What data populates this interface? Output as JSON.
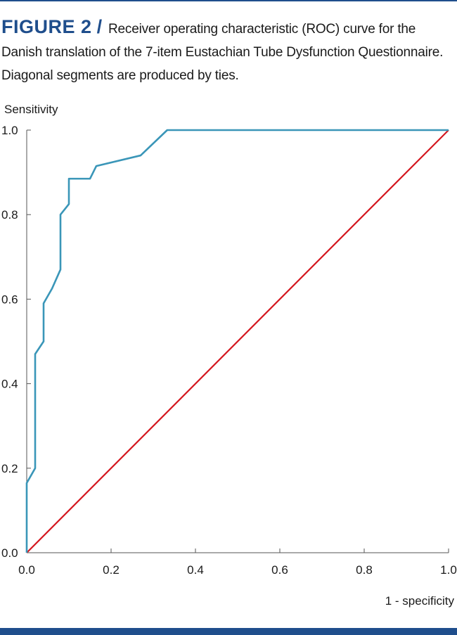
{
  "figure": {
    "label": "FIGURE 2",
    "separator": "/",
    "caption": "Receiver operating characteristic (ROC) curve for the Danish translation of the 7-item Eustachian Tube Dysfunction Questionnaire. Diagonal segments are produced by ties."
  },
  "colors": {
    "brand": "#1f4e8c",
    "roc_line": "#3a96b8",
    "reference_line": "#d4161e",
    "axis": "#555555"
  },
  "chart_data": {
    "type": "line",
    "xlabel": "1 - specificity",
    "ylabel": "Sensitivity",
    "xlim": [
      0.0,
      1.0
    ],
    "ylim": [
      0.0,
      1.0
    ],
    "xticks": [
      "0.0",
      "0.2",
      "0.4",
      "0.6",
      "0.8",
      "1.0"
    ],
    "yticks": [
      "0.0",
      "0.2",
      "0.4",
      "0.6",
      "0.8",
      "1.0"
    ],
    "grid": false,
    "series": [
      {
        "x": [
          0.0,
          0.0,
          0.02,
          0.02,
          0.04,
          0.04,
          0.06,
          0.08,
          0.08,
          0.1,
          0.1,
          0.15,
          0.165,
          0.27,
          0.333,
          1.0
        ],
        "y": [
          0.0,
          0.165,
          0.2,
          0.47,
          0.5,
          0.59,
          0.625,
          0.67,
          0.8,
          0.825,
          0.885,
          0.885,
          0.915,
          0.94,
          1.0,
          1.0
        ]
      },
      {
        "x": [
          0.0,
          1.0
        ],
        "y": [
          0.0,
          1.0
        ]
      }
    ]
  }
}
